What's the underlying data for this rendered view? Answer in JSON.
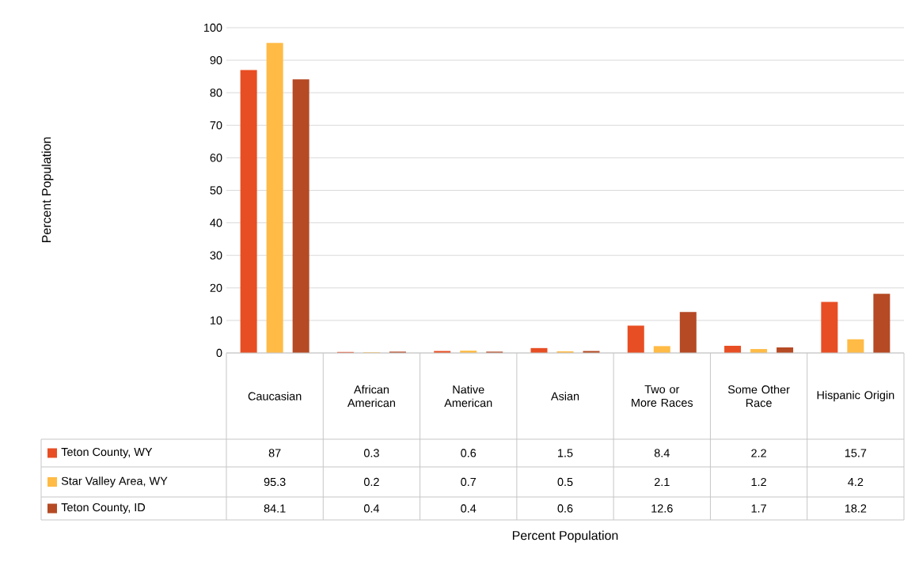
{
  "chart_data": {
    "type": "bar",
    "annotations": [
      "Percent Population",
      "Percent Population"
    ],
    "categories": [
      "Caucasian",
      "African American",
      "Native American",
      "Asian",
      "Two or More Races",
      "Some Other Race",
      "Hispanic Origin"
    ],
    "series": [
      {
        "name": "Teton County, WY",
        "color": "#e84e23",
        "values": [
          87,
          0.3,
          0.6,
          1.5,
          8.4,
          2.2,
          15.7
        ]
      },
      {
        "name": "Star Valley Area, WY",
        "color": "#ffbb45",
        "values": [
          95.3,
          0.2,
          0.7,
          0.5,
          2.1,
          1.2,
          4.2
        ]
      },
      {
        "name": "Teton County, ID",
        "color": "#b54a24",
        "values": [
          84.1,
          0.4,
          0.4,
          0.6,
          12.6,
          1.7,
          18.2
        ]
      }
    ],
    "ylim": [
      0,
      100
    ],
    "yticks": [
      0,
      10,
      20,
      30,
      40,
      50,
      60,
      70,
      80,
      90,
      100
    ],
    "grid": "y",
    "legend": "bottom left",
    "data_labels": true
  }
}
